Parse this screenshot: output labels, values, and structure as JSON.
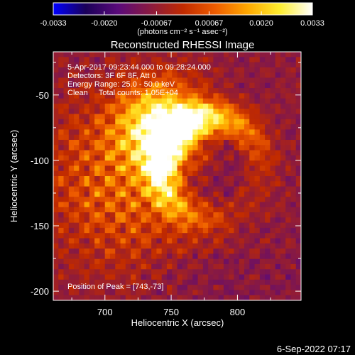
{
  "chart_data": {
    "type": "heatmap",
    "title": "Reconstructed RHESSI Image",
    "xlabel": "Heliocentric X (arcsec)",
    "ylabel": "Heliocentric Y (arcsec)",
    "xlim": [
      661,
      848
    ],
    "ylim": [
      -207,
      -17
    ],
    "xticks": [
      700,
      750,
      800
    ],
    "yticks": [
      -50,
      -100,
      -150,
      -200
    ],
    "annotations": {
      "time_range": "5-Apr-2017 09:23:44.000 to 09:28:24.000",
      "detectors": "Detectors: 3F 6F 8F, Att 0",
      "energy": "Energy Range: 25.0 - 50.0 keV",
      "method": "Clean     Total counts: 1.05E+04",
      "peak": "Position of Peak = [743,-73]"
    },
    "peak": [
      743,
      -73
    ],
    "colorbar": {
      "min": -0.0033,
      "max": 0.0033,
      "tick_values": [
        -0.0033,
        -0.002,
        -0.00067,
        0.00067,
        0.002,
        0.0033
      ],
      "tick_labels": [
        "-0.0033",
        "-0.0020",
        "-0.00067",
        "0.00067",
        "0.0020",
        "0.0033"
      ],
      "unit_label": "(photons cm⁻² s⁻¹ asec⁻²)",
      "colormap": [
        "#0000ff",
        "#1a0058",
        "#5a0a7a",
        "#8a1a40",
        "#c02a00",
        "#ee5c00",
        "#ffa800",
        "#ffee30",
        "#ffffff"
      ]
    }
  },
  "footer": {
    "timestamp": "6-Sep-2022 07:17"
  }
}
